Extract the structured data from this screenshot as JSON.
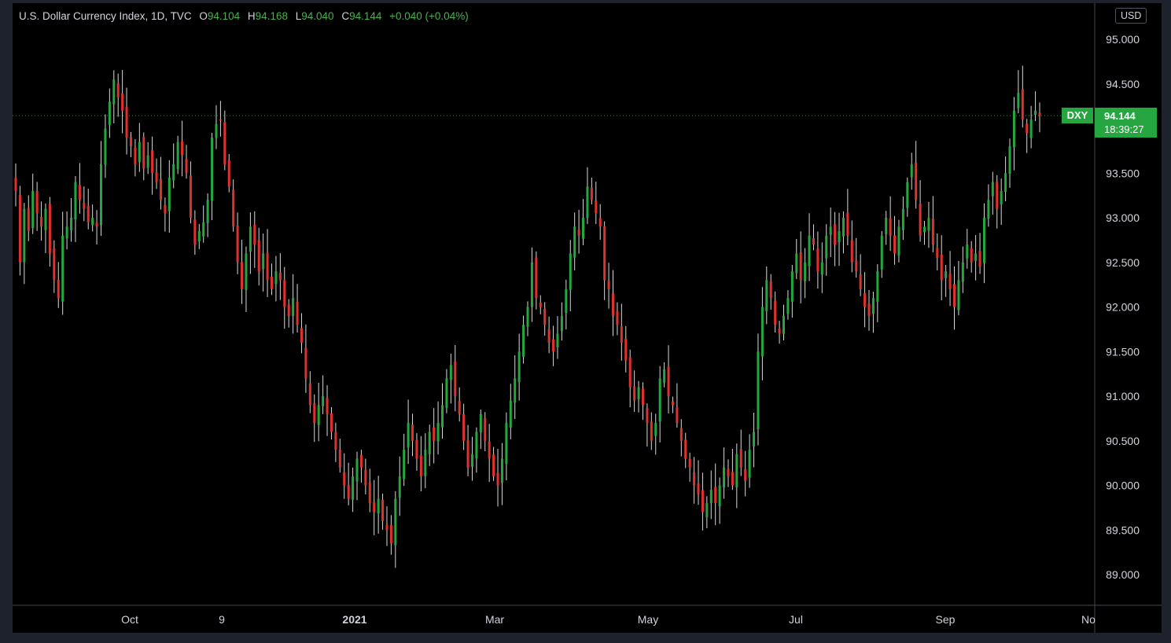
{
  "legend": {
    "symbol_name": "U.S. Dollar Currency Index, 1D, TVC",
    "open_label": "O",
    "open": "94.104",
    "high_label": "H",
    "high": "94.168",
    "low_label": "L",
    "low": "94.040",
    "close_label": "C",
    "close": "94.144",
    "change": "+0.040 (+0.04%)"
  },
  "currency": "USD",
  "price_tag": {
    "symbol": "DXY",
    "price": "94.144",
    "countdown": "18:39:27"
  },
  "colors": {
    "up": "#26a641",
    "down": "#e03131",
    "wick": "#d9d9d9",
    "axis_text": "#d1d4dc",
    "background": "#000000"
  },
  "chart_data": {
    "type": "candlestick",
    "title": "U.S. Dollar Currency Index, 1D, TVC",
    "ylim": [
      88.7,
      95.3
    ],
    "y_ticks": [
      "95.000",
      "94.500",
      "94.000",
      "93.500",
      "93.000",
      "92.500",
      "92.000",
      "91.500",
      "91.000",
      "90.500",
      "90.000",
      "89.500",
      "89.000"
    ],
    "x_ticks": [
      "Oct",
      "9",
      "2021",
      "Mar",
      "May",
      "Jul",
      "Sep",
      "No"
    ],
    "last_price": 94.144,
    "grid": false,
    "closes": [
      93.3,
      92.5,
      93.1,
      92.85,
      93.3,
      93.05,
      92.9,
      93.1,
      92.6,
      92.3,
      92.1,
      92.8,
      92.9,
      93.0,
      93.4,
      93.2,
      93.1,
      92.95,
      93.0,
      92.9,
      93.6,
      94.0,
      94.3,
      94.55,
      94.35,
      94.2,
      93.9,
      93.8,
      93.6,
      93.85,
      93.55,
      93.7,
      93.5,
      93.4,
      93.2,
      93.05,
      93.45,
      93.6,
      93.85,
      93.7,
      93.5,
      93.0,
      92.7,
      92.85,
      92.95,
      93.2,
      93.9,
      94.05,
      94.1,
      93.6,
      93.35,
      92.9,
      92.5,
      92.2,
      92.6,
      92.9,
      92.7,
      92.4,
      92.6,
      92.3,
      92.2,
      92.4,
      92.3,
      92.0,
      91.9,
      92.1,
      91.8,
      91.6,
      91.2,
      90.9,
      90.7,
      90.9,
      91.0,
      90.8,
      90.6,
      90.4,
      90.2,
      90.0,
      89.85,
      90.1,
      90.3,
      90.2,
      90.0,
      89.8,
      89.7,
      89.85,
      89.6,
      89.5,
      89.35,
      89.85,
      90.1,
      90.4,
      90.7,
      90.5,
      90.3,
      90.1,
      90.4,
      90.6,
      90.5,
      90.7,
      90.9,
      91.2,
      91.35,
      91.0,
      90.8,
      90.5,
      90.2,
      90.35,
      90.6,
      90.8,
      90.5,
      90.3,
      90.1,
      90.0,
      90.3,
      90.7,
      90.95,
      91.2,
      91.5,
      91.8,
      92.0,
      92.5,
      92.1,
      92.0,
      91.8,
      91.6,
      91.5,
      91.7,
      91.9,
      92.2,
      92.6,
      92.9,
      92.8,
      93.0,
      93.35,
      93.2,
      93.05,
      92.9,
      92.3,
      92.2,
      91.9,
      91.8,
      91.6,
      91.4,
      91.1,
      90.95,
      91.1,
      90.9,
      90.7,
      90.5,
      90.7,
      91.2,
      91.3,
      91.0,
      90.9,
      90.7,
      90.5,
      90.3,
      90.2,
      90.0,
      89.9,
      89.7,
      89.8,
      89.95,
      89.8,
      90.0,
      90.2,
      90.1,
      90.0,
      90.35,
      90.2,
      90.05,
      90.4,
      90.6,
      91.5,
      92.0,
      92.3,
      92.1,
      91.8,
      91.7,
      91.9,
      92.1,
      92.4,
      92.6,
      92.3,
      92.5,
      92.8,
      92.7,
      92.4,
      92.5,
      92.8,
      92.9,
      92.7,
      92.85,
      93.0,
      92.8,
      92.5,
      92.4,
      92.2,
      92.0,
      91.9,
      92.1,
      92.4,
      92.8,
      93.0,
      92.8,
      92.6,
      92.9,
      93.1,
      93.4,
      93.6,
      93.2,
      92.8,
      92.9,
      93.0,
      92.7,
      92.55,
      92.3,
      92.4,
      92.2,
      92.0,
      92.3,
      92.5,
      92.7,
      92.5,
      92.6,
      92.45,
      93.0,
      93.2,
      93.4,
      93.1,
      93.3,
      93.5,
      93.8,
      94.2,
      94.4,
      94.1,
      93.95,
      94.1,
      94.2,
      94.144
    ]
  }
}
